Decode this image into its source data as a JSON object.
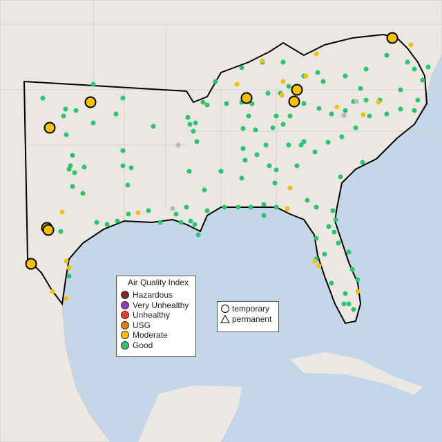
{
  "legend": {
    "title": "Air Quality Index",
    "items": [
      {
        "label": "Hazardous",
        "color": "#7e2a22"
      },
      {
        "label": "Very Unhealthy",
        "color": "#8f3fb0"
      },
      {
        "label": "Unhealthy",
        "color": "#e8402a"
      },
      {
        "label": "USG",
        "color": "#e87b12"
      },
      {
        "label": "Moderate",
        "color": "#f2c10f"
      },
      {
        "label": "Good",
        "color": "#2ec46e"
      }
    ]
  },
  "shape_legend": {
    "items": [
      "temporary",
      "permanent"
    ]
  }
}
